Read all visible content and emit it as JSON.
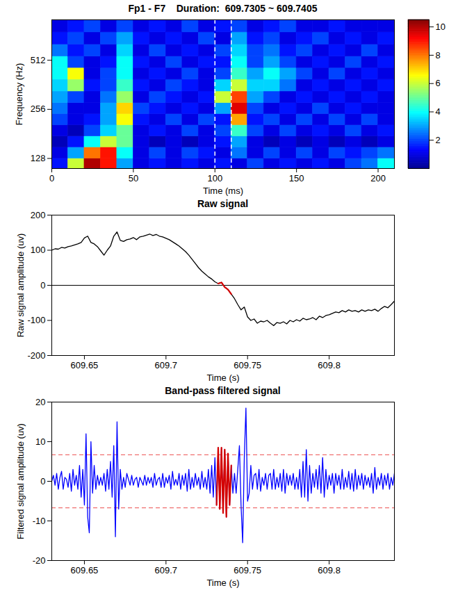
{
  "chart_data": [
    {
      "type": "heatmap",
      "title": "Fp1 - F7    Duration:  609.7305 ~ 609.7405",
      "x_label": "Time (ms)",
      "y_label": "Frequency (Hz)",
      "xlim": [
        0,
        210
      ],
      "xticks": [
        0,
        50,
        100,
        150,
        200
      ],
      "ylim": [
        111,
        906
      ],
      "yticks": [
        128,
        256,
        512
      ],
      "log": "y",
      "time_edges": [
        0,
        10,
        20,
        30,
        40,
        50,
        60,
        70,
        80,
        90,
        100,
        110,
        120,
        130,
        140,
        150,
        160,
        170,
        180,
        190,
        200,
        210
      ],
      "freq_edges": [
        111,
        128,
        150,
        175,
        205,
        240,
        280,
        330,
        390,
        460,
        540,
        640,
        760,
        906
      ],
      "cells": [
        [
          1.5,
          6,
          10,
          9,
          3,
          1,
          1.5,
          1,
          1.5,
          1,
          1.5,
          1,
          2,
          1,
          1.5,
          1,
          1.5,
          1,
          2,
          2.5,
          4
        ],
        [
          1,
          3,
          8,
          9,
          4,
          1,
          2,
          1,
          2,
          1.5,
          1,
          2.5,
          1,
          2,
          1,
          2,
          1,
          2,
          1.5,
          2,
          2.5
        ],
        [
          0.5,
          1.5,
          4,
          6,
          5,
          1,
          0.5,
          1,
          0.5,
          1,
          1.5,
          3,
          1,
          0.5,
          1,
          0.5,
          1,
          0.5,
          1,
          0.5,
          1
        ],
        [
          1,
          0.5,
          2,
          3.5,
          5,
          1,
          1.5,
          1,
          2,
          1,
          2,
          4.5,
          2,
          1,
          2,
          1,
          1.5,
          1,
          2,
          1,
          1.5
        ],
        [
          2,
          1,
          1.5,
          3,
          6.5,
          1.5,
          1,
          2,
          1,
          2,
          1.5,
          7.5,
          1.5,
          2,
          1,
          2,
          1,
          2,
          1,
          2,
          1
        ],
        [
          2.5,
          1,
          1,
          3,
          7,
          2,
          1.5,
          1,
          1.5,
          1,
          3,
          9.5,
          2,
          1,
          1.5,
          1,
          2,
          1,
          1.5,
          1,
          1
        ],
        [
          3,
          2,
          1,
          2.5,
          5.5,
          1,
          2,
          1.5,
          1,
          1.5,
          6,
          8.5,
          3,
          2,
          1,
          1.5,
          1,
          1.5,
          1,
          1.5,
          1
        ],
        [
          3.5,
          5.5,
          1.5,
          2,
          4.5,
          1.5,
          1,
          2,
          1.5,
          1,
          3.5,
          6,
          3.5,
          3.5,
          2.5,
          1,
          1.5,
          1,
          1.5,
          1,
          1.5
        ],
        [
          4,
          6.5,
          1,
          2,
          4,
          1,
          1.5,
          1,
          2,
          1,
          2,
          4.5,
          3,
          4,
          3,
          2,
          1,
          2,
          1,
          1.5,
          1
        ],
        [
          4,
          2,
          1,
          1.5,
          4,
          1.5,
          1,
          2,
          1,
          1.5,
          1.5,
          4,
          2,
          3,
          2,
          1,
          1.5,
          1,
          2,
          1,
          1.5
        ],
        [
          2.5,
          1.5,
          2,
          1,
          3.5,
          1,
          2,
          1,
          1.5,
          1,
          2,
          3.5,
          2,
          2.5,
          1.5,
          2,
          1,
          1.5,
          1,
          2,
          1
        ],
        [
          1.5,
          2,
          1,
          2,
          3,
          1.5,
          1,
          1.5,
          1,
          2,
          1,
          3,
          1.5,
          2,
          1,
          1.5,
          2,
          1,
          1.5,
          1,
          1.5
        ],
        [
          1,
          1.5,
          2,
          1,
          2,
          1,
          1.5,
          1,
          2,
          1,
          1.5,
          2,
          1,
          1.5,
          2,
          1,
          1,
          1.5,
          1,
          1,
          1
        ]
      ],
      "colorbar": {
        "range": [
          0,
          10.5
        ],
        "ticks": [
          2,
          4,
          6,
          8,
          10
        ]
      },
      "vertical_lines": {
        "values": [
          100,
          110
        ],
        "color": "#ffffff",
        "line_style": "dashed"
      }
    },
    {
      "type": "line",
      "title": "Raw signal",
      "x_label": "Time (s)",
      "y_label": "Raw signal amplitude (uv)",
      "xlim": [
        609.63,
        609.84
      ],
      "xticks": [
        609.65,
        609.7,
        609.75,
        609.8
      ],
      "ylim": [
        -200,
        200
      ],
      "yticks": [
        -200,
        -100,
        0,
        100,
        200
      ],
      "x": [
        609.63,
        609.632,
        609.634,
        609.636,
        609.638,
        609.64,
        609.642,
        609.644,
        609.646,
        609.648,
        609.65,
        609.652,
        609.654,
        609.656,
        609.658,
        609.66,
        609.662,
        609.664,
        609.666,
        609.668,
        609.67,
        609.672,
        609.674,
        609.676,
        609.678,
        609.68,
        609.682,
        609.684,
        609.686,
        609.688,
        609.69,
        609.692,
        609.694,
        609.696,
        609.698,
        609.7,
        609.702,
        609.704,
        609.706,
        609.708,
        609.71,
        609.712,
        609.714,
        609.716,
        609.718,
        609.72,
        609.722,
        609.724,
        609.726,
        609.728,
        609.73,
        609.732,
        609.734,
        609.736,
        609.738,
        609.74,
        609.742,
        609.744,
        609.746,
        609.748,
        609.75,
        609.752,
        609.754,
        609.756,
        609.758,
        609.76,
        609.762,
        609.764,
        609.766,
        609.768,
        609.77,
        609.772,
        609.774,
        609.776,
        609.778,
        609.78,
        609.782,
        609.784,
        609.786,
        609.788,
        609.79,
        609.792,
        609.794,
        609.796,
        609.798,
        609.8,
        609.802,
        609.804,
        609.806,
        609.808,
        609.81,
        609.812,
        609.814,
        609.816,
        609.818,
        609.82,
        609.822,
        609.824,
        609.826,
        609.828,
        609.83,
        609.832,
        609.834,
        609.836,
        609.838,
        609.84
      ],
      "series": [
        {
          "color": "#000000",
          "values": [
            100,
            104,
            103,
            108,
            106,
            110,
            112,
            115,
            118,
            122,
            135,
            140,
            122,
            118,
            110,
            98,
            86,
            100,
            112,
            140,
            152,
            128,
            125,
            130,
            132,
            136,
            130,
            138,
            140,
            143,
            146,
            142,
            145,
            140,
            138,
            134,
            130,
            124,
            118,
            112,
            104,
            96,
            86,
            74,
            62,
            50,
            40,
            32,
            24,
            18,
            10,
            5,
            8,
            -5,
            -12,
            -25,
            -38,
            -55,
            -70,
            -62,
            -90,
            -100,
            -96,
            -108,
            -102,
            -104,
            -100,
            -108,
            -115,
            -106,
            -108,
            -104,
            -110,
            -100,
            -104,
            -98,
            -102,
            -94,
            -98,
            -96,
            -92,
            -98,
            -88,
            -92,
            -86,
            -84,
            -80,
            -76,
            -78,
            -72,
            -76,
            -70,
            -74,
            -72,
            -76,
            -70,
            -74,
            -70,
            -72,
            -68,
            -74,
            -66,
            -60,
            -64,
            -55,
            -45
          ]
        }
      ],
      "highlight": {
        "range": [
          609.7305,
          609.7405
        ],
        "color": "#d40000"
      },
      "reference_lines": {
        "values": [
          0
        ],
        "color": "#000000",
        "line_style": "solid"
      }
    },
    {
      "type": "line",
      "title": "Band-pass filtered signal",
      "x_label": "Time (s)",
      "y_label": "Filtered signal amplitude (uv)",
      "xlim": [
        609.63,
        609.84
      ],
      "xticks": [
        609.65,
        609.7,
        609.75,
        609.8
      ],
      "ylim": [
        -20,
        20
      ],
      "yticks": [
        -20,
        -10,
        0,
        10,
        20
      ],
      "x": [
        609.63,
        609.631,
        609.632,
        609.633,
        609.634,
        609.635,
        609.636,
        609.637,
        609.638,
        609.639,
        609.64,
        609.641,
        609.642,
        609.643,
        609.644,
        609.645,
        609.646,
        609.647,
        609.648,
        609.649,
        609.65,
        609.651,
        609.652,
        609.653,
        609.654,
        609.655,
        609.656,
        609.657,
        609.658,
        609.659,
        609.66,
        609.661,
        609.662,
        609.663,
        609.664,
        609.665,
        609.666,
        609.667,
        609.668,
        609.669,
        609.67,
        609.671,
        609.672,
        609.673,
        609.674,
        609.675,
        609.676,
        609.677,
        609.678,
        609.679,
        609.68,
        609.681,
        609.682,
        609.683,
        609.684,
        609.685,
        609.686,
        609.687,
        609.688,
        609.689,
        609.69,
        609.691,
        609.692,
        609.693,
        609.694,
        609.695,
        609.696,
        609.697,
        609.698,
        609.699,
        609.7,
        609.701,
        609.702,
        609.703,
        609.704,
        609.705,
        609.706,
        609.707,
        609.708,
        609.709,
        609.71,
        609.711,
        609.712,
        609.713,
        609.714,
        609.715,
        609.716,
        609.717,
        609.718,
        609.719,
        609.72,
        609.721,
        609.722,
        609.723,
        609.724,
        609.725,
        609.726,
        609.727,
        609.728,
        609.729,
        609.73,
        609.731,
        609.732,
        609.733,
        609.734,
        609.735,
        609.736,
        609.737,
        609.738,
        609.739,
        609.74,
        609.741,
        609.742,
        609.743,
        609.744,
        609.745,
        609.746,
        609.747,
        609.748,
        609.749,
        609.75,
        609.751,
        609.752,
        609.753,
        609.754,
        609.755,
        609.756,
        609.757,
        609.758,
        609.759,
        609.76,
        609.761,
        609.762,
        609.763,
        609.764,
        609.765,
        609.766,
        609.767,
        609.768,
        609.769,
        609.77,
        609.771,
        609.772,
        609.773,
        609.774,
        609.775,
        609.776,
        609.777,
        609.778,
        609.779,
        609.78,
        609.781,
        609.782,
        609.783,
        609.784,
        609.785,
        609.786,
        609.787,
        609.788,
        609.789,
        609.79,
        609.791,
        609.792,
        609.793,
        609.794,
        609.795,
        609.796,
        609.797,
        609.798,
        609.799,
        609.8,
        609.801,
        609.802,
        609.803,
        609.804,
        609.805,
        609.806,
        609.807,
        609.808,
        609.809,
        609.81,
        609.811,
        609.812,
        609.813,
        609.814,
        609.815,
        609.816,
        609.817,
        609.818,
        609.819,
        609.82,
        609.821,
        609.822,
        609.823,
        609.824,
        609.825,
        609.826,
        609.827,
        609.828,
        609.829,
        609.83,
        609.831,
        609.832,
        609.833,
        609.834,
        609.835,
        609.836,
        609.837,
        609.838,
        609.839,
        609.84
      ],
      "series": [
        {
          "color": "#0000ff",
          "values": [
            0,
            1.5,
            -1,
            2,
            -2,
            1,
            2.5,
            -2,
            1,
            0.5,
            -1.5,
            2,
            -2.5,
            3,
            -1,
            1.5,
            -2,
            4,
            -4,
            3,
            -6,
            12,
            -9,
            -13,
            10,
            -3,
            4,
            -2,
            1.5,
            -1,
            1,
            -1,
            2,
            -2.5,
            3,
            -2,
            5,
            -4,
            9,
            -14,
            15,
            -7,
            3,
            -2,
            1,
            -1.5,
            2,
            0.5,
            -1,
            1.5,
            -1,
            0.5,
            1,
            -1.5,
            1,
            0,
            -1,
            1.5,
            -1,
            1,
            -0.5,
            1,
            -1.5,
            2,
            -1,
            0.5,
            1,
            -1.5,
            2,
            -1.5,
            1,
            -0.5,
            1.5,
            -2,
            2.5,
            -1,
            0.5,
            -1,
            2,
            -2,
            1.5,
            -1,
            2,
            -2.5,
            3,
            -2,
            1,
            -1.5,
            2,
            -1,
            1,
            -2,
            2.5,
            -1.5,
            1,
            -2,
            3,
            -3,
            4,
            -4,
            6,
            -6,
            8.5,
            -7,
            8.5,
            -8,
            8,
            -9,
            7,
            -6,
            4,
            -3,
            2,
            -3,
            3,
            9,
            -6,
            -15.5,
            6,
            18.5,
            -5,
            -3,
            4,
            -2,
            1.5,
            2,
            -2,
            3,
            -2.5,
            1,
            -1,
            2,
            -2,
            1.5,
            2,
            -2,
            3,
            -2,
            1,
            -1.5,
            2,
            -2.5,
            3,
            -3,
            2,
            -1,
            1.5,
            -1,
            2,
            -2,
            1,
            -2,
            3,
            -4,
            5,
            -4,
            8,
            -5,
            4,
            -3,
            2,
            -1.5,
            3,
            -2,
            4,
            -3,
            6,
            -4,
            3,
            -2,
            1.5,
            -1,
            2,
            -3,
            2,
            -1,
            1.5,
            -2,
            3,
            -2,
            1,
            -1.5,
            2.5,
            -2,
            2,
            -2.5,
            3,
            -2,
            1.5,
            -1,
            2,
            -2,
            1.5,
            -1,
            1,
            -1.5,
            2,
            -3,
            3.5,
            -2,
            1,
            -1,
            2,
            -2,
            1.5,
            -1,
            2,
            -2,
            1,
            -1,
            2
          ]
        }
      ],
      "highlight": {
        "range": [
          609.7305,
          609.7405
        ],
        "color": "#d40000"
      },
      "threshold_lines": {
        "values": [
          6.7,
          -6.7
        ],
        "color": "#f07070",
        "line_style": "dashed"
      }
    }
  ]
}
